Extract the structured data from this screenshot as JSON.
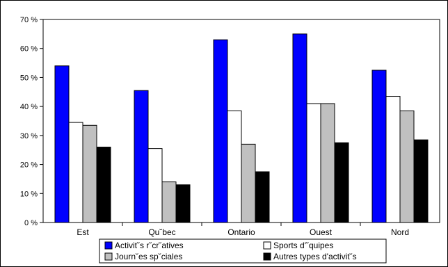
{
  "chart_data": {
    "type": "bar",
    "categories": [
      "Est",
      "Qu˘bec",
      "Ontario",
      "Ouest",
      "Nord"
    ],
    "series": [
      {
        "name": "Activit˘s r˘cr˘atives",
        "color": "#0000ff",
        "values": [
          54,
          45.5,
          63,
          65,
          52.5
        ]
      },
      {
        "name": "Sports d'˘quipes",
        "color": "#ffffff",
        "values": [
          34.5,
          25.5,
          38.5,
          41,
          43.5
        ]
      },
      {
        "name": "Journ˘es sp˘ciales",
        "color": "#c0c0c0",
        "values": [
          33.5,
          14,
          27,
          41,
          38.5
        ]
      },
      {
        "name": "Autres types d'activit˘s",
        "color": "#000000",
        "values": [
          26,
          13,
          17.5,
          27.5,
          28.5
        ]
      }
    ],
    "yticks": [
      "0 %",
      "10 %",
      "20 %",
      "30 %",
      "40 %",
      "50 %",
      "60 %",
      "70 %"
    ],
    "ylim": [
      0,
      70
    ],
    "title": "",
    "xlabel": "",
    "ylabel": "",
    "grid": false,
    "legend_position": "bottom"
  }
}
